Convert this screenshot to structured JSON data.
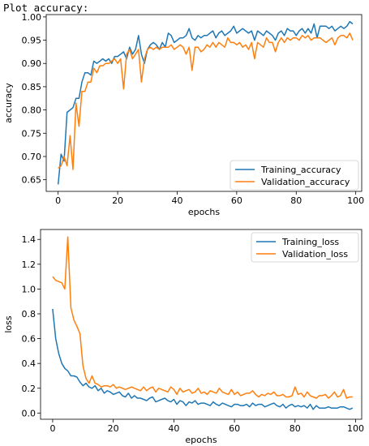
{
  "cell_label": "Plot accuracy:",
  "colors": {
    "training": "#1f77b4",
    "validation": "#ff7f0e"
  },
  "chart_data": [
    {
      "type": "line",
      "title": "",
      "xlabel": "epochs",
      "ylabel": "accuracy",
      "xlim": [
        -4,
        102
      ],
      "ylim": [
        0.625,
        1.005
      ],
      "xticks": [
        0,
        20,
        40,
        60,
        80,
        100
      ],
      "xtick_labels": [
        "0",
        "20",
        "40",
        "60",
        "80",
        "100"
      ],
      "yticks": [
        0.65,
        0.7,
        0.75,
        0.8,
        0.85,
        0.9,
        0.95,
        1.0
      ],
      "ytick_labels": [
        "0.65",
        "0.70",
        "0.75",
        "0.80",
        "0.85",
        "0.90",
        "0.95",
        "1.00"
      ],
      "legend_position": "lower-right",
      "grid": false,
      "series": [
        {
          "name": "Training_accuracy",
          "color_key": "training",
          "x": [
            0,
            1,
            2,
            3,
            4,
            5,
            6,
            7,
            8,
            9,
            10,
            11,
            12,
            13,
            14,
            15,
            16,
            17,
            18,
            19,
            20,
            21,
            22,
            23,
            24,
            25,
            26,
            27,
            28,
            29,
            30,
            31,
            32,
            33,
            34,
            35,
            36,
            37,
            38,
            39,
            40,
            41,
            42,
            43,
            44,
            45,
            46,
            47,
            48,
            49,
            50,
            51,
            52,
            53,
            54,
            55,
            56,
            57,
            58,
            59,
            60,
            61,
            62,
            63,
            64,
            65,
            66,
            67,
            68,
            69,
            70,
            71,
            72,
            73,
            74,
            75,
            76,
            77,
            78,
            79,
            80,
            81,
            82,
            83,
            84,
            85,
            86,
            87,
            88,
            89,
            90,
            91,
            92,
            93,
            94,
            95,
            96,
            97,
            98,
            99
          ],
          "y": [
            0.64,
            0.705,
            0.69,
            0.795,
            0.8,
            0.805,
            0.825,
            0.825,
            0.86,
            0.88,
            0.88,
            0.875,
            0.905,
            0.9,
            0.905,
            0.91,
            0.905,
            0.91,
            0.9,
            0.915,
            0.915,
            0.92,
            0.925,
            0.91,
            0.935,
            0.92,
            0.93,
            0.96,
            0.92,
            0.9,
            0.93,
            0.94,
            0.945,
            0.94,
            0.93,
            0.945,
            0.935,
            0.965,
            0.96,
            0.945,
            0.95,
            0.955,
            0.955,
            0.96,
            0.975,
            0.955,
            0.95,
            0.96,
            0.955,
            0.96,
            0.96,
            0.965,
            0.97,
            0.955,
            0.965,
            0.97,
            0.96,
            0.965,
            0.97,
            0.98,
            0.965,
            0.97,
            0.975,
            0.97,
            0.965,
            0.97,
            0.95,
            0.97,
            0.965,
            0.96,
            0.97,
            0.965,
            0.96,
            0.95,
            0.965,
            0.97,
            0.96,
            0.975,
            0.97,
            0.97,
            0.96,
            0.97,
            0.975,
            0.965,
            0.975,
            0.965,
            0.985,
            0.955,
            0.98,
            0.98,
            0.98,
            0.975,
            0.98,
            0.97,
            0.975,
            0.98,
            0.975,
            0.98,
            0.99,
            0.985
          ]
        },
        {
          "name": "Validation_accuracy",
          "color_key": "validation",
          "x": [
            0,
            1,
            2,
            3,
            4,
            5,
            6,
            7,
            8,
            9,
            10,
            11,
            12,
            13,
            14,
            15,
            16,
            17,
            18,
            19,
            20,
            21,
            22,
            23,
            24,
            25,
            26,
            27,
            28,
            29,
            30,
            31,
            32,
            33,
            34,
            35,
            36,
            37,
            38,
            39,
            40,
            41,
            42,
            43,
            44,
            45,
            46,
            47,
            48,
            49,
            50,
            51,
            52,
            53,
            54,
            55,
            56,
            57,
            58,
            59,
            60,
            61,
            62,
            63,
            64,
            65,
            66,
            67,
            68,
            69,
            70,
            71,
            72,
            73,
            74,
            75,
            76,
            77,
            78,
            79,
            80,
            81,
            82,
            83,
            84,
            85,
            86,
            87,
            88,
            89,
            90,
            91,
            92,
            93,
            94,
            95,
            96,
            97,
            98,
            99
          ],
          "y": [
            0.675,
            0.68,
            0.7,
            0.68,
            0.745,
            0.672,
            0.815,
            0.765,
            0.84,
            0.84,
            0.86,
            0.86,
            0.89,
            0.88,
            0.895,
            0.895,
            0.9,
            0.9,
            0.905,
            0.91,
            0.9,
            0.91,
            0.845,
            0.92,
            0.93,
            0.91,
            0.92,
            0.93,
            0.86,
            0.91,
            0.93,
            0.935,
            0.93,
            0.935,
            0.93,
            0.935,
            0.935,
            0.935,
            0.94,
            0.93,
            0.935,
            0.94,
            0.935,
            0.92,
            0.935,
            0.885,
            0.935,
            0.935,
            0.925,
            0.93,
            0.94,
            0.935,
            0.945,
            0.935,
            0.945,
            0.94,
            0.935,
            0.955,
            0.945,
            0.945,
            0.94,
            0.945,
            0.935,
            0.94,
            0.93,
            0.945,
            0.91,
            0.945,
            0.94,
            0.935,
            0.955,
            0.945,
            0.945,
            0.925,
            0.945,
            0.955,
            0.945,
            0.955,
            0.95,
            0.955,
            0.955,
            0.95,
            0.96,
            0.955,
            0.96,
            0.95,
            0.955,
            0.955,
            0.955,
            0.95,
            0.945,
            0.95,
            0.955,
            0.94,
            0.955,
            0.96,
            0.96,
            0.955,
            0.965,
            0.95
          ]
        }
      ]
    },
    {
      "type": "line",
      "title": "",
      "xlabel": "epochs",
      "ylabel": "loss",
      "xlim": [
        -4,
        102
      ],
      "ylim": [
        -0.05,
        1.48
      ],
      "xticks": [
        0,
        20,
        40,
        60,
        80,
        100
      ],
      "xtick_labels": [
        "0",
        "20",
        "40",
        "60",
        "80",
        "100"
      ],
      "yticks": [
        0.0,
        0.2,
        0.4,
        0.6,
        0.8,
        1.0,
        1.2,
        1.4
      ],
      "ytick_labels": [
        "0.0",
        "0.2",
        "0.4",
        "0.6",
        "0.8",
        "1.0",
        "1.2",
        "1.4"
      ],
      "legend_position": "upper-right",
      "grid": false,
      "series": [
        {
          "name": "Training_loss",
          "color_key": "training",
          "x": [
            0,
            1,
            2,
            3,
            4,
            5,
            6,
            7,
            8,
            9,
            10,
            11,
            12,
            13,
            14,
            15,
            16,
            17,
            18,
            19,
            20,
            21,
            22,
            23,
            24,
            25,
            26,
            27,
            28,
            29,
            30,
            31,
            32,
            33,
            34,
            35,
            36,
            37,
            38,
            39,
            40,
            41,
            42,
            43,
            44,
            45,
            46,
            47,
            48,
            49,
            50,
            51,
            52,
            53,
            54,
            55,
            56,
            57,
            58,
            59,
            60,
            61,
            62,
            63,
            64,
            65,
            66,
            67,
            68,
            69,
            70,
            71,
            72,
            73,
            74,
            75,
            76,
            77,
            78,
            79,
            80,
            81,
            82,
            83,
            84,
            85,
            86,
            87,
            88,
            89,
            90,
            91,
            92,
            93,
            94,
            95,
            96,
            97,
            98,
            99
          ],
          "y": [
            0.84,
            0.6,
            0.48,
            0.4,
            0.36,
            0.34,
            0.3,
            0.3,
            0.29,
            0.25,
            0.22,
            0.24,
            0.21,
            0.2,
            0.22,
            0.18,
            0.2,
            0.16,
            0.18,
            0.17,
            0.15,
            0.16,
            0.17,
            0.14,
            0.13,
            0.16,
            0.12,
            0.14,
            0.12,
            0.12,
            0.11,
            0.1,
            0.12,
            0.13,
            0.09,
            0.1,
            0.11,
            0.12,
            0.1,
            0.09,
            0.11,
            0.07,
            0.1,
            0.09,
            0.06,
            0.09,
            0.08,
            0.1,
            0.07,
            0.08,
            0.08,
            0.07,
            0.06,
            0.09,
            0.07,
            0.06,
            0.08,
            0.07,
            0.06,
            0.05,
            0.07,
            0.07,
            0.06,
            0.06,
            0.07,
            0.05,
            0.08,
            0.06,
            0.07,
            0.07,
            0.05,
            0.06,
            0.07,
            0.08,
            0.06,
            0.05,
            0.07,
            0.04,
            0.06,
            0.07,
            0.05,
            0.06,
            0.05,
            0.06,
            0.04,
            0.07,
            0.03,
            0.06,
            0.04,
            0.04,
            0.04,
            0.05,
            0.04,
            0.04,
            0.04,
            0.05,
            0.05,
            0.04,
            0.03,
            0.04
          ]
        },
        {
          "name": "Validation_loss",
          "color_key": "validation",
          "x": [
            0,
            1,
            2,
            3,
            4,
            5,
            6,
            7,
            8,
            9,
            10,
            11,
            12,
            13,
            14,
            15,
            16,
            17,
            18,
            19,
            20,
            21,
            22,
            23,
            24,
            25,
            26,
            27,
            28,
            29,
            30,
            31,
            32,
            33,
            34,
            35,
            36,
            37,
            38,
            39,
            40,
            41,
            42,
            43,
            44,
            45,
            46,
            47,
            48,
            49,
            50,
            51,
            52,
            53,
            54,
            55,
            56,
            57,
            58,
            59,
            60,
            61,
            62,
            63,
            64,
            65,
            66,
            67,
            68,
            69,
            70,
            71,
            72,
            73,
            74,
            75,
            76,
            77,
            78,
            79,
            80,
            81,
            82,
            83,
            84,
            85,
            86,
            87,
            88,
            89,
            90,
            91,
            92,
            93,
            94,
            95,
            96,
            97,
            98,
            99
          ],
          "y": [
            1.1,
            1.07,
            1.06,
            1.05,
            1.0,
            1.42,
            0.85,
            0.75,
            0.7,
            0.64,
            0.38,
            0.28,
            0.24,
            0.3,
            0.24,
            0.23,
            0.21,
            0.22,
            0.22,
            0.21,
            0.23,
            0.2,
            0.21,
            0.2,
            0.19,
            0.2,
            0.21,
            0.2,
            0.19,
            0.18,
            0.21,
            0.18,
            0.2,
            0.21,
            0.17,
            0.2,
            0.19,
            0.18,
            0.17,
            0.21,
            0.19,
            0.15,
            0.2,
            0.17,
            0.18,
            0.19,
            0.16,
            0.17,
            0.2,
            0.16,
            0.17,
            0.15,
            0.18,
            0.17,
            0.16,
            0.2,
            0.17,
            0.16,
            0.15,
            0.19,
            0.15,
            0.17,
            0.14,
            0.15,
            0.16,
            0.16,
            0.18,
            0.15,
            0.13,
            0.15,
            0.14,
            0.16,
            0.15,
            0.17,
            0.14,
            0.14,
            0.15,
            0.13,
            0.13,
            0.14,
            0.21,
            0.15,
            0.16,
            0.13,
            0.17,
            0.14,
            0.13,
            0.12,
            0.14,
            0.14,
            0.15,
            0.12,
            0.14,
            0.17,
            0.13,
            0.14,
            0.19,
            0.12,
            0.13,
            0.13
          ]
        }
      ]
    }
  ]
}
